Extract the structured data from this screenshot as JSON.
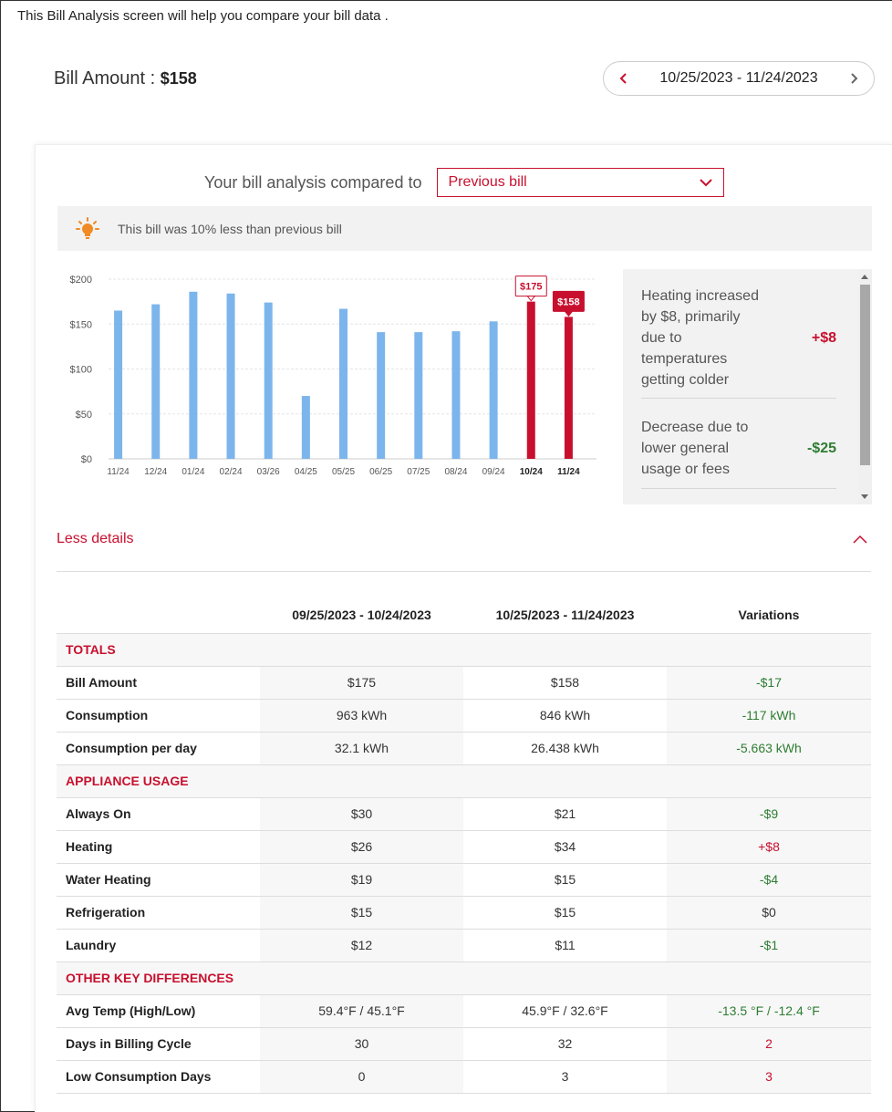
{
  "intro_text": "This Bill Analysis screen will help you compare your bill data .",
  "bill": {
    "label": "Bill Amount : ",
    "amount": "$158"
  },
  "date_nav": {
    "range": "10/25/2023 - 11/24/2023"
  },
  "compare": {
    "label": "Your bill analysis compared to",
    "selected": "Previous bill"
  },
  "tip": {
    "text": "This bill was 10% less than previous bill"
  },
  "colors": {
    "accent": "#c8102e",
    "bar_past": "#7cb5ec",
    "positive": "#c8102e",
    "negative": "#2e7d32"
  },
  "chart_data": {
    "type": "bar",
    "categories": [
      "11/24",
      "12/24",
      "01/24",
      "02/24",
      "03/26",
      "04/25",
      "05/25",
      "06/25",
      "07/25",
      "08/24",
      "09/24",
      "10/24",
      "11/24"
    ],
    "values": [
      165,
      172,
      186,
      184,
      174,
      70,
      167,
      141,
      141,
      142,
      153,
      175,
      158
    ],
    "highlighted": [
      11,
      12
    ],
    "data_labels": {
      "11": "$175",
      "12": "$158"
    },
    "yticks": [
      "$0",
      "$50",
      "$100",
      "$150",
      "$200"
    ],
    "ylim": [
      0,
      200
    ],
    "grid": true,
    "title": "",
    "xlabel": "",
    "ylabel": ""
  },
  "breakdown": [
    {
      "text": "Heating increased by $8, primarily due to temperatures getting colder",
      "value": "+$8",
      "sign": "pos"
    },
    {
      "text": "Decrease due to lower general usage or fees",
      "value": "-$25",
      "sign": "neg"
    }
  ],
  "details": {
    "toggle_label": "Less details"
  },
  "table": {
    "headers": [
      "",
      "09/25/2023 - 10/24/2023",
      "10/25/2023 - 11/24/2023",
      "Variations"
    ],
    "sections": [
      {
        "title": "TOTALS",
        "rows": [
          {
            "label": "Bill Amount",
            "prev": "$175",
            "curr": "$158",
            "var": "-$17",
            "sign": "neg"
          },
          {
            "label": "Consumption",
            "prev": "963 kWh",
            "curr": "846 kWh",
            "var": "-117 kWh",
            "sign": "neg"
          },
          {
            "label": "Consumption per day",
            "prev": "32.1 kWh",
            "curr": "26.438 kWh",
            "var": "-5.663 kWh",
            "sign": "neg"
          }
        ]
      },
      {
        "title": "APPLIANCE USAGE",
        "rows": [
          {
            "label": "Always On",
            "prev": "$30",
            "curr": "$21",
            "var": "-$9",
            "sign": "neg"
          },
          {
            "label": "Heating",
            "prev": "$26",
            "curr": "$34",
            "var": "+$8",
            "sign": "pos"
          },
          {
            "label": "Water Heating",
            "prev": "$19",
            "curr": "$15",
            "var": "-$4",
            "sign": "neg"
          },
          {
            "label": "Refrigeration",
            "prev": "$15",
            "curr": "$15",
            "var": "$0",
            "sign": "zero"
          },
          {
            "label": "Laundry",
            "prev": "$12",
            "curr": "$11",
            "var": "-$1",
            "sign": "neg"
          }
        ]
      },
      {
        "title": "OTHER KEY DIFFERENCES",
        "rows": [
          {
            "label": "Avg Temp (High/Low)",
            "prev": "59.4°F / 45.1°F",
            "curr": "45.9°F / 32.6°F",
            "var": "-13.5 °F / -12.4 °F",
            "sign": "neg"
          },
          {
            "label": "Days in Billing Cycle",
            "prev": "30",
            "curr": "32",
            "var": "2",
            "sign": "pos"
          },
          {
            "label": "Low Consumption Days",
            "prev": "0",
            "curr": "3",
            "var": "3",
            "sign": "pos"
          }
        ]
      }
    ]
  }
}
